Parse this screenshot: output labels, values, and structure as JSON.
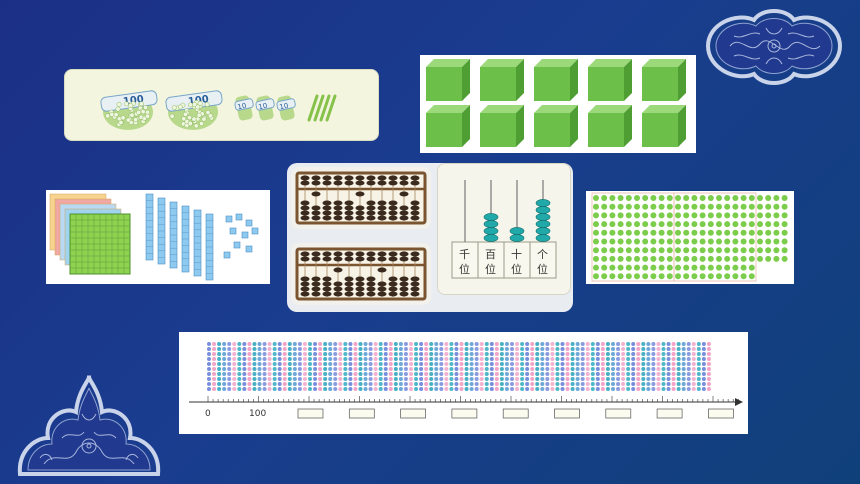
{
  "bundles": {
    "bundle_labels": [
      "100",
      "100",
      "10",
      "10",
      "10"
    ]
  },
  "place_value": {
    "columns": [
      {
        "top": "千",
        "bottom": "位"
      },
      {
        "top": "百",
        "bottom": "位"
      },
      {
        "top": "十",
        "bottom": "位"
      },
      {
        "top": "个",
        "bottom": "位"
      }
    ],
    "bead_counts": [
      0,
      4,
      2,
      6
    ]
  },
  "number_line": {
    "tick_labels": [
      "0",
      "100"
    ],
    "blank_boxes": 9
  },
  "colors": {
    "cube_green": "#6cc04a",
    "bead_teal": "#21a9a9",
    "dot_green": "#7ccd4b",
    "bundle_cream": "#f4f5df"
  }
}
